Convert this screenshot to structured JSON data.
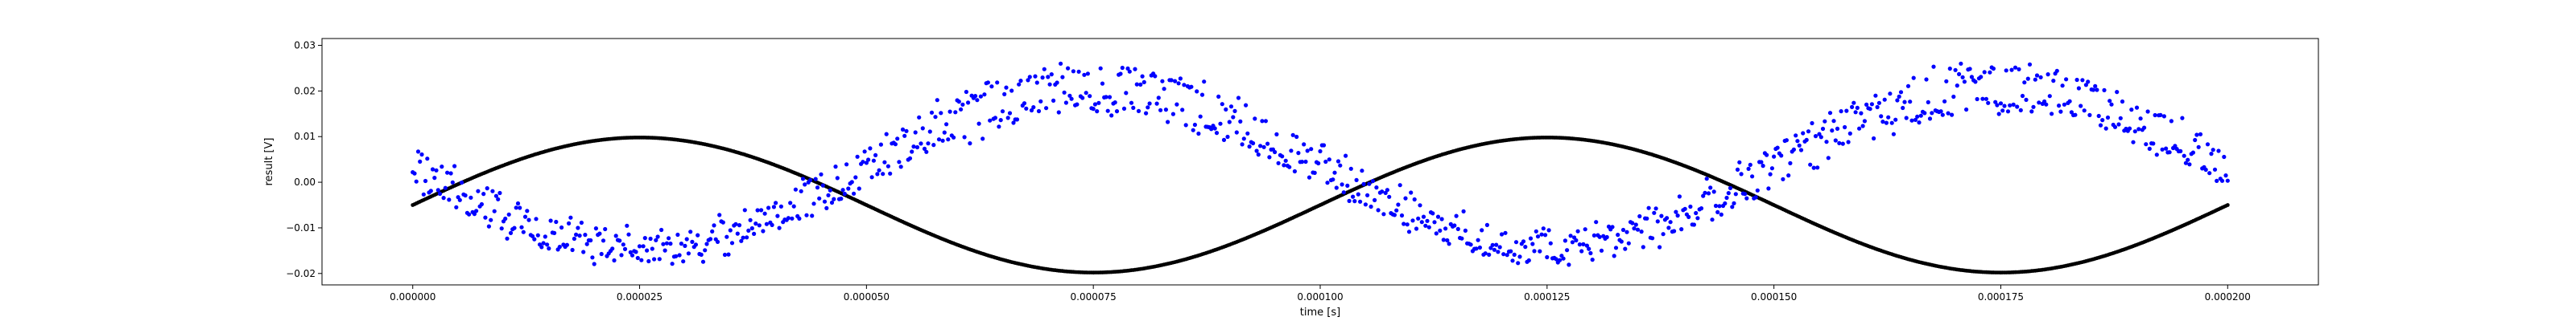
{
  "chart_data": {
    "type": "scatter",
    "xlabel": "time [s]",
    "ylabel": "result [V]",
    "xlim": [
      -1e-05,
      0.00021
    ],
    "ylim": [
      -0.0225,
      0.0315
    ],
    "x_ticks": [
      0.0,
      2.5e-05,
      5e-05,
      7.5e-05,
      0.0001,
      0.000125,
      0.00015,
      0.000175,
      0.0002
    ],
    "x_tick_labels": [
      "0.000000",
      "0.000025",
      "0.000050",
      "0.000075",
      "0.000100",
      "0.000125",
      "0.000150",
      "0.000175",
      "0.000200"
    ],
    "y_ticks": [
      -0.02,
      -0.01,
      0.0,
      0.01,
      0.02,
      0.03
    ],
    "y_tick_labels": [
      "−0.02",
      "−0.01",
      "0.00",
      "0.01",
      "0.02",
      "0.03"
    ],
    "grid": false,
    "legend": "none",
    "series": [
      {
        "color": "#000000",
        "marker": "dense-dots",
        "x_range": [
          0.0,
          0.0002
        ],
        "samples": 1000,
        "function": "sine",
        "offset": -0.005,
        "amplitude": 0.0148,
        "period": 0.0001,
        "phase_shift": 0.0,
        "description_values": {
          "max": 0.0098,
          "min": -0.0198
        }
      },
      {
        "color": "#0000ff",
        "marker": "dot",
        "x_range": [
          0.0,
          0.0002
        ],
        "samples": 1000,
        "function": "two-branch sine with noise",
        "branch_a_offset": 0.0058,
        "branch_a_amplitude": 0.0185,
        "branch_b_offset": 0.0008,
        "branch_b_amplitude": 0.0168,
        "period": 0.0001,
        "peak_x": [
          7.5e-05,
          0.000175
        ],
        "trough_x": [
          2.5e-05,
          0.000125
        ],
        "noise": 0.0025
      }
    ]
  }
}
